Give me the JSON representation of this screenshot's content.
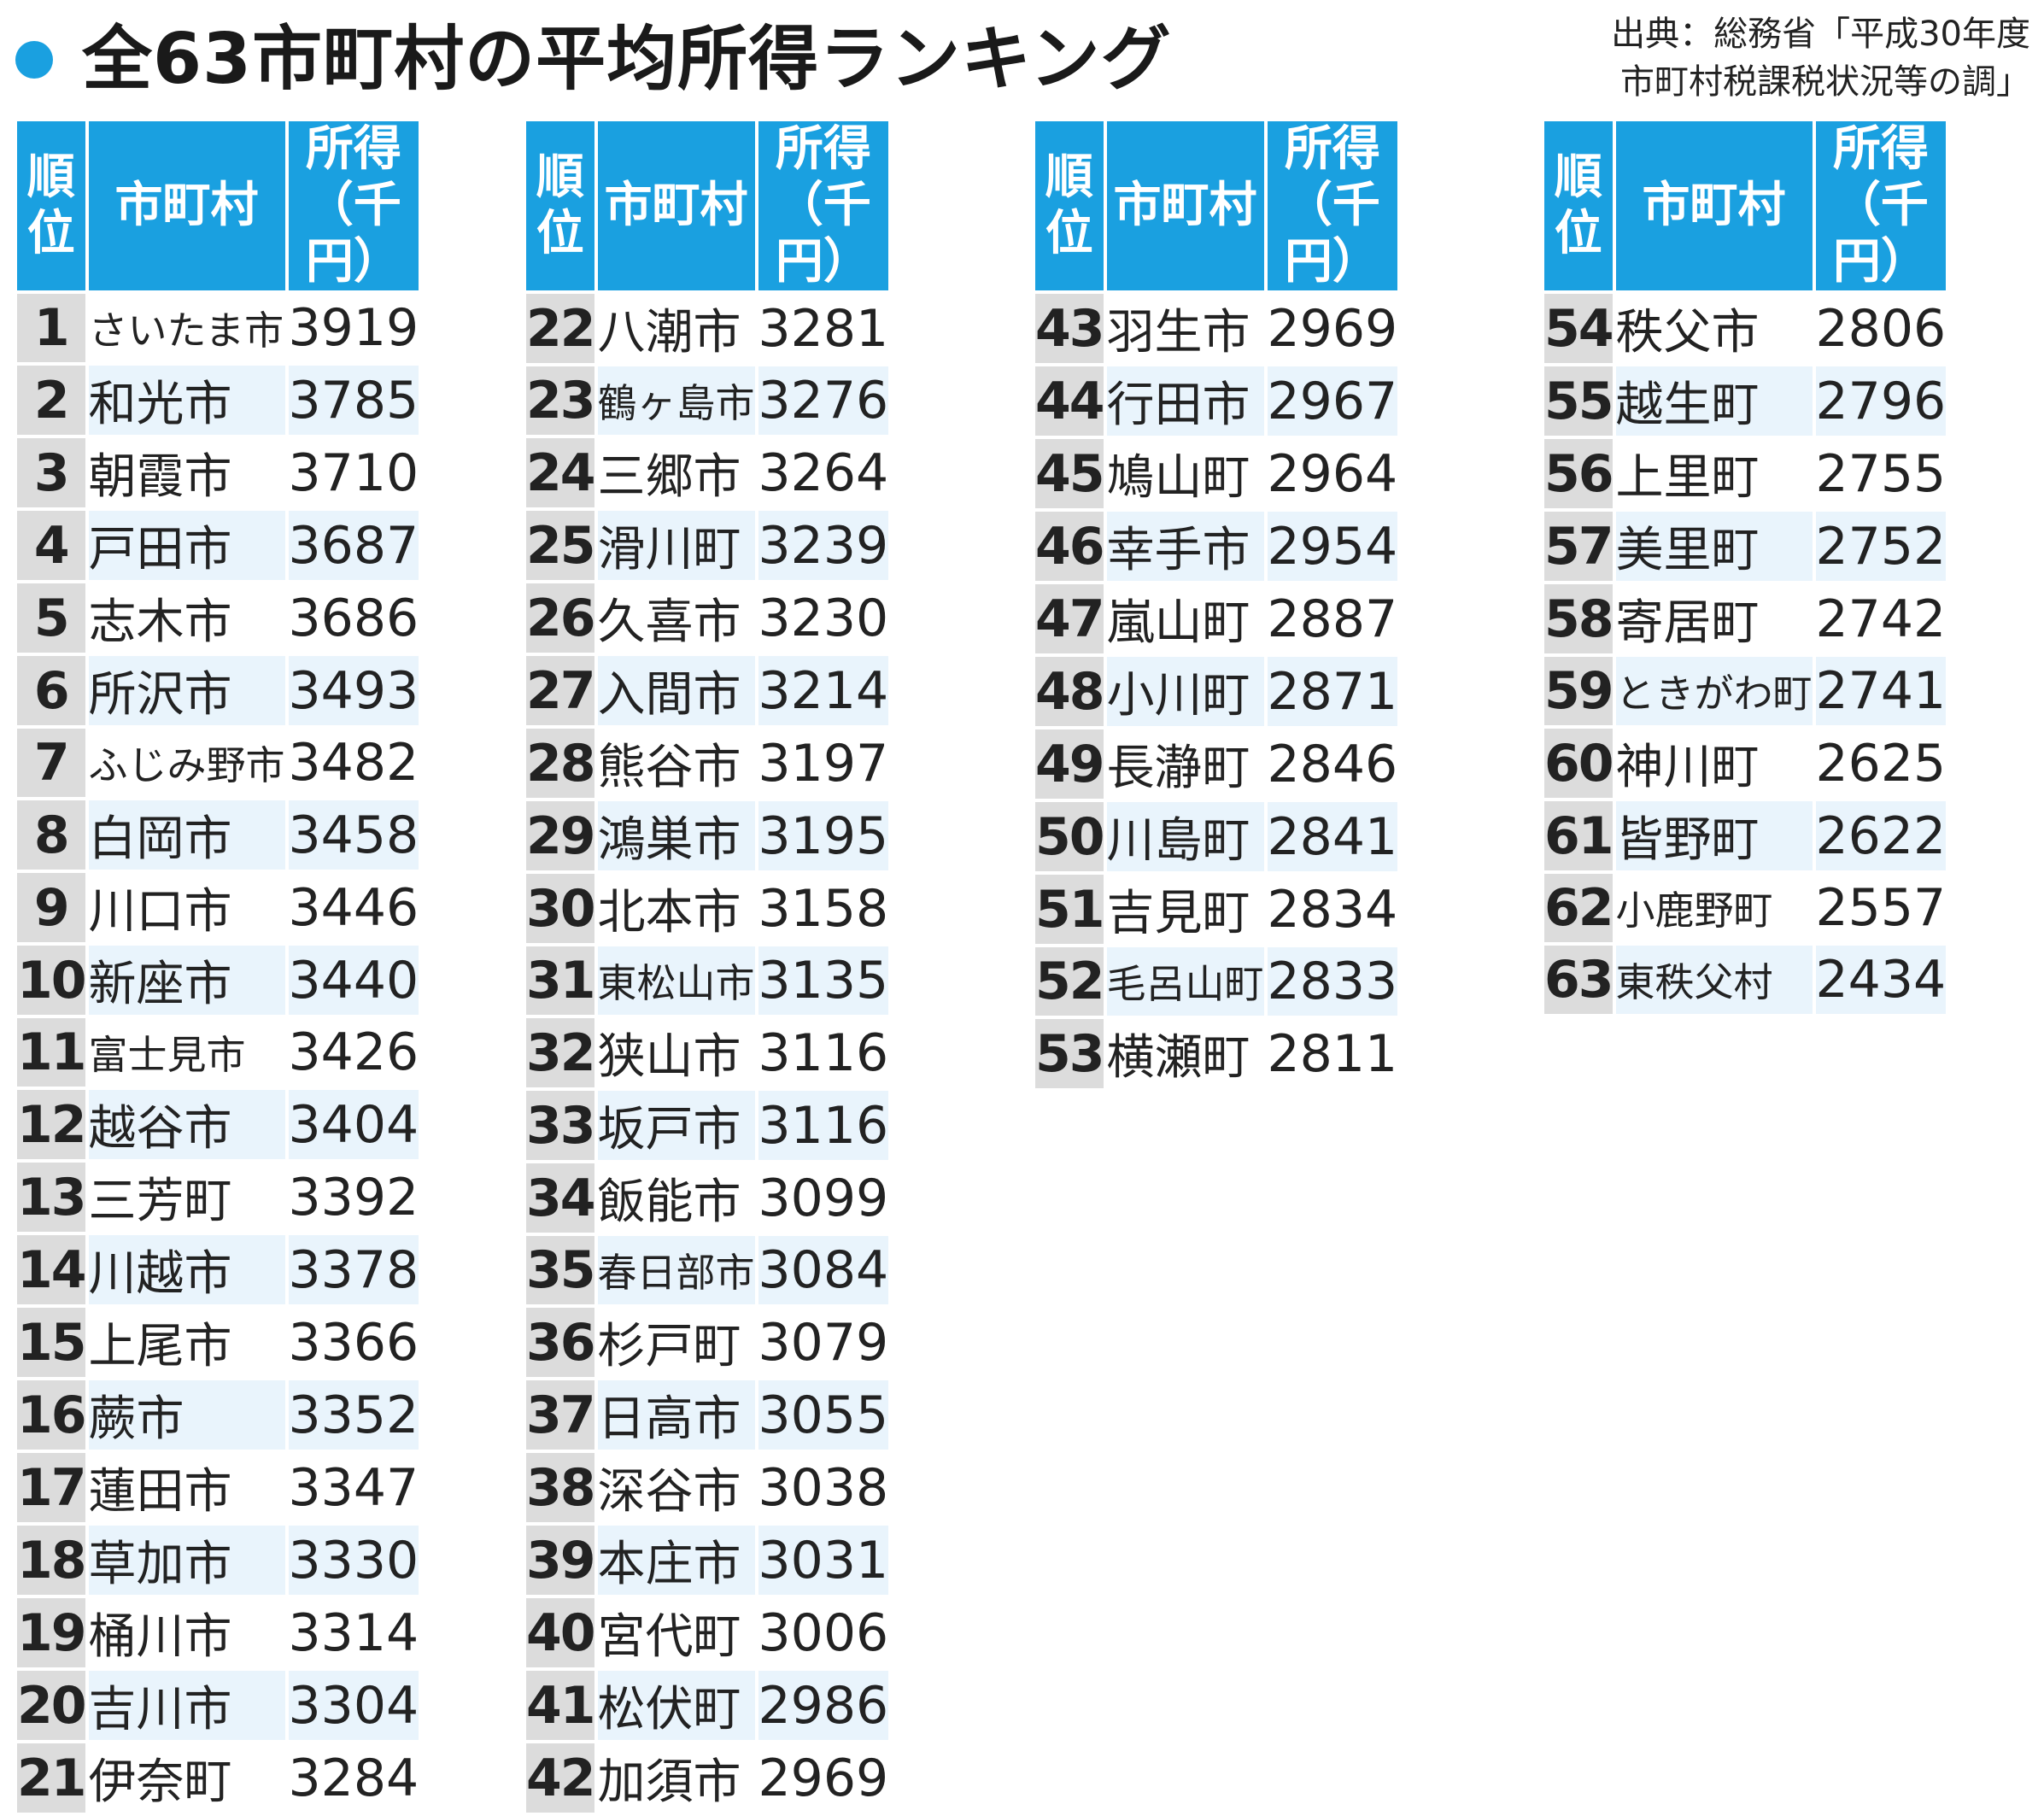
{
  "title": "全63市町村の平均所得ランキング",
  "source": {
    "line1": "出典：総務省「平成30年度",
    "line2": "市町村税課税状況等の調」"
  },
  "headers": {
    "rank": "順位",
    "municipality": "市町村",
    "income_l1": "所得",
    "income_l2": "（千円）"
  },
  "colors": {
    "header_bg": "#1aa0e0",
    "rank_bg": "#dcdcdc",
    "alt_row_bg": "#e9f4fc",
    "text": "#222222"
  },
  "chart_data": {
    "type": "table",
    "title": "全63市町村の平均所得ランキング",
    "columns": [
      "順位",
      "市町村",
      "所得（千円）"
    ],
    "rows": [
      {
        "rank": "1",
        "name": "さいたま市",
        "income": "3919"
      },
      {
        "rank": "2",
        "name": "和光市",
        "income": "3785"
      },
      {
        "rank": "3",
        "name": "朝霞市",
        "income": "3710"
      },
      {
        "rank": "4",
        "name": "戸田市",
        "income": "3687"
      },
      {
        "rank": "5",
        "name": "志木市",
        "income": "3686"
      },
      {
        "rank": "6",
        "name": "所沢市",
        "income": "3493"
      },
      {
        "rank": "7",
        "name": "ふじみ野市",
        "income": "3482"
      },
      {
        "rank": "8",
        "name": "白岡市",
        "income": "3458"
      },
      {
        "rank": "9",
        "name": "川口市",
        "income": "3446"
      },
      {
        "rank": "10",
        "name": "新座市",
        "income": "3440"
      },
      {
        "rank": "11",
        "name": "富士見市",
        "income": "3426"
      },
      {
        "rank": "12",
        "name": "越谷市",
        "income": "3404"
      },
      {
        "rank": "13",
        "name": "三芳町",
        "income": "3392"
      },
      {
        "rank": "14",
        "name": "川越市",
        "income": "3378"
      },
      {
        "rank": "15",
        "name": "上尾市",
        "income": "3366"
      },
      {
        "rank": "16",
        "name": "蕨市",
        "income": "3352"
      },
      {
        "rank": "17",
        "name": "蓮田市",
        "income": "3347"
      },
      {
        "rank": "18",
        "name": "草加市",
        "income": "3330"
      },
      {
        "rank": "19",
        "name": "桶川市",
        "income": "3314"
      },
      {
        "rank": "20",
        "name": "吉川市",
        "income": "3304"
      },
      {
        "rank": "21",
        "name": "伊奈町",
        "income": "3284"
      },
      {
        "rank": "22",
        "name": "八潮市",
        "income": "3281"
      },
      {
        "rank": "23",
        "name": "鶴ヶ島市",
        "income": "3276"
      },
      {
        "rank": "24",
        "name": "三郷市",
        "income": "3264"
      },
      {
        "rank": "25",
        "name": "滑川町",
        "income": "3239"
      },
      {
        "rank": "26",
        "name": "久喜市",
        "income": "3230"
      },
      {
        "rank": "27",
        "name": "入間市",
        "income": "3214"
      },
      {
        "rank": "28",
        "name": "熊谷市",
        "income": "3197"
      },
      {
        "rank": "29",
        "name": "鴻巣市",
        "income": "3195"
      },
      {
        "rank": "30",
        "name": "北本市",
        "income": "3158"
      },
      {
        "rank": "31",
        "name": "東松山市",
        "income": "3135"
      },
      {
        "rank": "32",
        "name": "狭山市",
        "income": "3116"
      },
      {
        "rank": "33",
        "name": "坂戸市",
        "income": "3116"
      },
      {
        "rank": "34",
        "name": "飯能市",
        "income": "3099"
      },
      {
        "rank": "35",
        "name": "春日部市",
        "income": "3084"
      },
      {
        "rank": "36",
        "name": "杉戸町",
        "income": "3079"
      },
      {
        "rank": "37",
        "name": "日高市",
        "income": "3055"
      },
      {
        "rank": "38",
        "name": "深谷市",
        "income": "3038"
      },
      {
        "rank": "39",
        "name": "本庄市",
        "income": "3031"
      },
      {
        "rank": "40",
        "name": "宮代町",
        "income": "3006"
      },
      {
        "rank": "41",
        "name": "松伏町",
        "income": "2986"
      },
      {
        "rank": "42",
        "name": "加須市",
        "income": "2969"
      },
      {
        "rank": "43",
        "name": "羽生市",
        "income": "2969"
      },
      {
        "rank": "44",
        "name": "行田市",
        "income": "2967"
      },
      {
        "rank": "45",
        "name": "鳩山町",
        "income": "2964"
      },
      {
        "rank": "46",
        "name": "幸手市",
        "income": "2954"
      },
      {
        "rank": "47",
        "name": "嵐山町",
        "income": "2887"
      },
      {
        "rank": "48",
        "name": "小川町",
        "income": "2871"
      },
      {
        "rank": "49",
        "name": "長瀞町",
        "income": "2846"
      },
      {
        "rank": "50",
        "name": "川島町",
        "income": "2841"
      },
      {
        "rank": "51",
        "name": "吉見町",
        "income": "2834"
      },
      {
        "rank": "52",
        "name": "毛呂山町",
        "income": "2833"
      },
      {
        "rank": "53",
        "name": "横瀬町",
        "income": "2811"
      },
      {
        "rank": "54",
        "name": "秩父市",
        "income": "2806"
      },
      {
        "rank": "55",
        "name": "越生町",
        "income": "2796"
      },
      {
        "rank": "56",
        "name": "上里町",
        "income": "2755"
      },
      {
        "rank": "57",
        "name": "美里町",
        "income": "2752"
      },
      {
        "rank": "58",
        "name": "寄居町",
        "income": "2742"
      },
      {
        "rank": "59",
        "name": "ときがわ町",
        "income": "2741"
      },
      {
        "rank": "60",
        "name": "神川町",
        "income": "2625"
      },
      {
        "rank": "61",
        "name": "皆野町",
        "income": "2622"
      },
      {
        "rank": "62",
        "name": "小鹿野町",
        "income": "2557"
      },
      {
        "rank": "63",
        "name": "東秩父村",
        "income": "2434"
      }
    ],
    "column_groups": [
      [
        1,
        21
      ],
      [
        22,
        42
      ],
      [
        43,
        53
      ],
      [
        54,
        63
      ]
    ]
  }
}
